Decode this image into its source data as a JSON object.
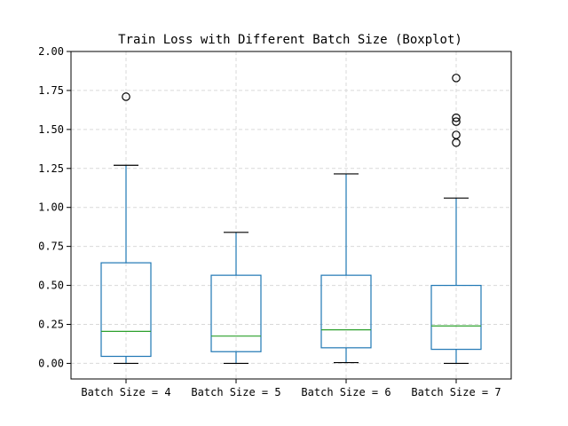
{
  "chart_data": {
    "type": "boxplot",
    "title": "Train Loss with Different Batch Size (Boxplot)",
    "xlabel": "",
    "ylabel": "",
    "ylim": [
      -0.1,
      2.0
    ],
    "yticks": [
      0.0,
      0.25,
      0.5,
      0.75,
      1.0,
      1.25,
      1.5,
      1.75,
      2.0
    ],
    "ytick_labels": [
      "0.00",
      "0.25",
      "0.50",
      "0.75",
      "1.00",
      "1.25",
      "1.50",
      "1.75",
      "2.00"
    ],
    "grid": true,
    "categories": [
      "Batch Size = 4",
      "Batch Size = 5",
      "Batch Size = 6",
      "Batch Size = 7"
    ],
    "boxes": [
      {
        "category": "Batch Size = 4",
        "whisker_low": 0.0,
        "q1": 0.045,
        "median": 0.205,
        "q3": 0.645,
        "whisker_high": 1.27,
        "outliers": [
          1.71
        ]
      },
      {
        "category": "Batch Size = 5",
        "whisker_low": 0.0,
        "q1": 0.075,
        "median": 0.175,
        "q3": 0.565,
        "whisker_high": 0.84,
        "outliers": []
      },
      {
        "category": "Batch Size = 6",
        "whisker_low": 0.005,
        "q1": 0.1,
        "median": 0.215,
        "q3": 0.565,
        "whisker_high": 1.215,
        "outliers": []
      },
      {
        "category": "Batch Size = 7",
        "whisker_low": 0.0,
        "q1": 0.09,
        "median": 0.24,
        "q3": 0.5,
        "whisker_high": 1.06,
        "outliers": [
          1.83,
          1.575,
          1.55,
          1.465,
          1.415
        ]
      }
    ],
    "colors": {
      "box": "#1f77b4",
      "median": "#2ca02c",
      "whisker_cap": "#000000",
      "outlier": "#000000",
      "grid": "#d9d9d9",
      "axes": "#000000"
    }
  }
}
